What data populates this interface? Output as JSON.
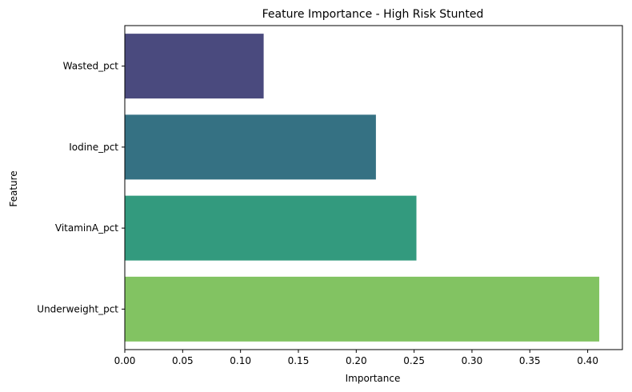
{
  "chart_data": {
    "type": "bar",
    "orientation": "horizontal",
    "title": "Feature Importance - High Risk Stunted",
    "xlabel": "Importance",
    "ylabel": "Feature",
    "categories": [
      "Wasted_pct",
      "Iodine_pct",
      "VitaminA_pct",
      "Underweight_pct"
    ],
    "values": [
      0.12,
      0.217,
      0.252,
      0.41
    ],
    "colors": [
      "#4a4a7e",
      "#357183",
      "#339a7e",
      "#82c362"
    ],
    "xlim": [
      0,
      0.43
    ],
    "xticks": [
      "0.00",
      "0.05",
      "0.10",
      "0.15",
      "0.20",
      "0.25",
      "0.30",
      "0.35",
      "0.40"
    ],
    "grid": false,
    "legend": "none"
  }
}
